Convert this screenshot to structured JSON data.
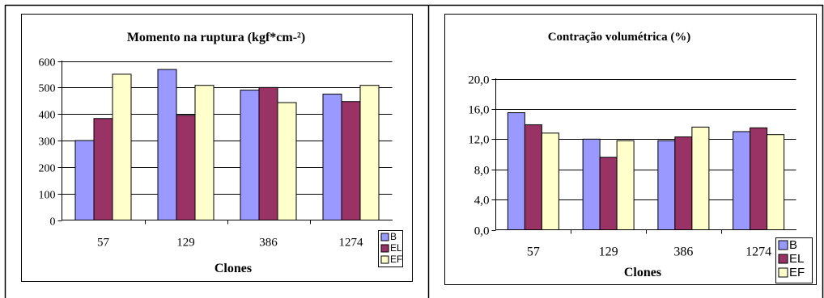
{
  "colors": {
    "B": "#9999ff",
    "EL": "#993366",
    "EF": "#ffffcc"
  },
  "chart_data": [
    {
      "type": "bar",
      "title": "Momento na ruptura (kgf*cm-²)",
      "xlabel": "Clones",
      "ylabel": "",
      "categories": [
        "57",
        "129",
        "386",
        "1274"
      ],
      "ylim": [
        0,
        600
      ],
      "yticks": [
        "0",
        "100",
        "200",
        "300",
        "400",
        "500",
        "600"
      ],
      "grid": true,
      "legend_position": "bottom-right",
      "series": [
        {
          "name": "B",
          "values": [
            300,
            568,
            490,
            475
          ]
        },
        {
          "name": "EL",
          "values": [
            383,
            395,
            500,
            447
          ]
        },
        {
          "name": "EF",
          "values": [
            550,
            508,
            443,
            508
          ]
        }
      ]
    },
    {
      "type": "bar",
      "title": "Contração volumétrica (%)",
      "xlabel": "Clones",
      "ylabel": "",
      "categories": [
        "57",
        "129",
        "386",
        "1274"
      ],
      "ylim": [
        0,
        20
      ],
      "yticks": [
        "0,0",
        "4,0",
        "8,0",
        "12,0",
        "16,0",
        "20,0"
      ],
      "grid": true,
      "legend_position": "bottom-right",
      "series": [
        {
          "name": "B",
          "values": [
            15.5,
            12.0,
            11.8,
            13.0
          ]
        },
        {
          "name": "EL",
          "values": [
            13.9,
            9.6,
            12.3,
            13.5
          ]
        },
        {
          "name": "EF",
          "values": [
            12.8,
            11.8,
            13.6,
            12.6
          ]
        }
      ]
    }
  ]
}
